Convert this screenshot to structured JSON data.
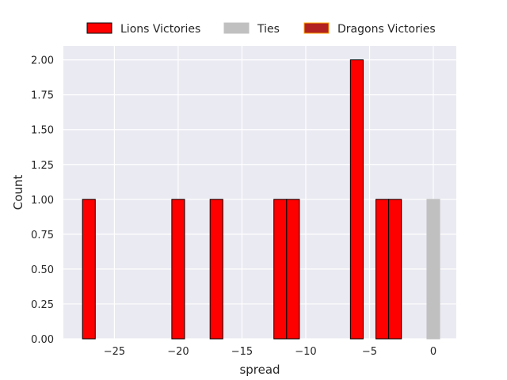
{
  "chart_data": {
    "type": "bar",
    "title": "",
    "xlabel": "spread",
    "ylabel": "Count",
    "xlim": [
      -29,
      1.8
    ],
    "ylim": [
      0,
      2.1
    ],
    "grid": true,
    "legend_position": "top-center",
    "bin_width": 1,
    "x_ticks": [
      {
        "value": -25,
        "label": "−25"
      },
      {
        "value": -20,
        "label": "−20"
      },
      {
        "value": -15,
        "label": "−15"
      },
      {
        "value": -10,
        "label": "−10"
      },
      {
        "value": -5,
        "label": "−5"
      },
      {
        "value": 0,
        "label": "0"
      }
    ],
    "y_ticks": [
      {
        "value": 0,
        "label": "0.00"
      },
      {
        "value": 0.25,
        "label": "0.25"
      },
      {
        "value": 0.5,
        "label": "0.50"
      },
      {
        "value": 0.75,
        "label": "0.75"
      },
      {
        "value": 1.0,
        "label": "1.00"
      },
      {
        "value": 1.25,
        "label": "1.25"
      },
      {
        "value": 1.5,
        "label": "1.50"
      },
      {
        "value": 1.75,
        "label": "1.75"
      },
      {
        "value": 2.0,
        "label": "2.00"
      }
    ],
    "series": [
      {
        "name": "Lions Victories",
        "color": "#ff0000",
        "edge": "#000000",
        "bins": [
          {
            "start": -27.5,
            "end": -26.5,
            "count": 1
          },
          {
            "start": -20.5,
            "end": -19.5,
            "count": 1
          },
          {
            "start": -17.5,
            "end": -16.5,
            "count": 1
          },
          {
            "start": -12.5,
            "end": -11.5,
            "count": 1
          },
          {
            "start": -11.5,
            "end": -10.5,
            "count": 1
          },
          {
            "start": -6.5,
            "end": -5.5,
            "count": 2
          },
          {
            "start": -4.5,
            "end": -3.5,
            "count": 1
          },
          {
            "start": -3.5,
            "end": -2.5,
            "count": 1
          }
        ]
      },
      {
        "name": "Ties",
        "color": "#c0c0c0",
        "edge": "#c0c0c0",
        "bins": [
          {
            "start": -0.5,
            "end": 0.5,
            "count": 1
          }
        ]
      },
      {
        "name": "Dragons Victories",
        "color": "#b22222",
        "edge": "#ffa500",
        "bins": []
      }
    ]
  }
}
